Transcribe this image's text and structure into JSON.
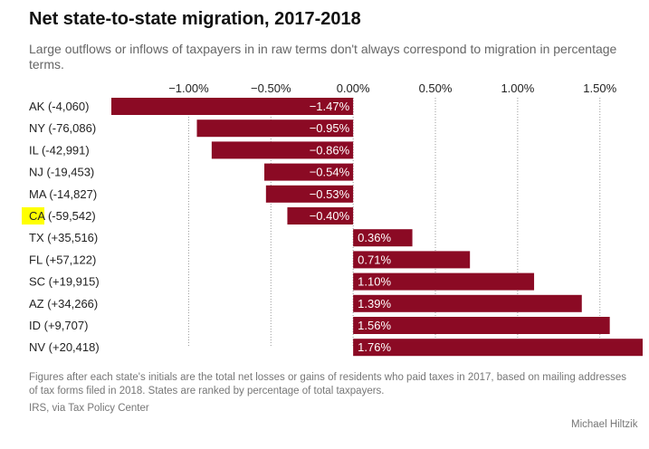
{
  "header": {
    "title": "Net state-to-state migration, 2017-2018",
    "subtitle": "Large outflows or inflows of taxpayers in in raw terms don't always correspond to migration in percentage terms."
  },
  "footer": {
    "note": "Figures after each state's initials are the total net losses or gains of residents who paid taxes in 2017, based on mailing addresses of tax forms filed in 2018. States are ranked by percentage of total taxpayers.",
    "source": "IRS, via Tax Policy Center",
    "credit": "Michael Hiltzik"
  },
  "colors": {
    "bar": "#8b0a24",
    "highlight": "#ffff00",
    "grid": "#9a9a9a"
  },
  "chart_data": {
    "type": "bar",
    "orientation": "horizontal",
    "categories": [
      "AK (-4,060)",
      "NY (-76,086)",
      "IL (-42,991)",
      "NJ (-19,453)",
      "MA (-14,827)",
      "CA (-59,542)",
      "TX (+35,516)",
      "FL (+57,122)",
      "SC (+19,915)",
      "AZ (+34,266)",
      "ID (+9,707)",
      "NV (+20,418)"
    ],
    "values": [
      -1.47,
      -0.95,
      -0.86,
      -0.54,
      -0.53,
      -0.4,
      0.36,
      0.71,
      1.1,
      1.39,
      1.56,
      1.76
    ],
    "value_labels": [
      "−1.47%",
      "−0.95%",
      "−0.86%",
      "−0.54%",
      "−0.53%",
      "−0.40%",
      "0.36%",
      "0.71%",
      "1.10%",
      "1.39%",
      "1.56%",
      "1.76%"
    ],
    "ticks": [
      -1.0,
      -0.5,
      0,
      0.5,
      1.0,
      1.5
    ],
    "tick_labels": [
      "−1.00%",
      "−0.50%",
      "0.00%",
      "0.50%",
      "1.00%",
      "1.50%"
    ],
    "xlim": [
      -1.47,
      1.76
    ],
    "axis_position": "top",
    "grid": "dotted vertical",
    "highlighted_category": "CA"
  }
}
